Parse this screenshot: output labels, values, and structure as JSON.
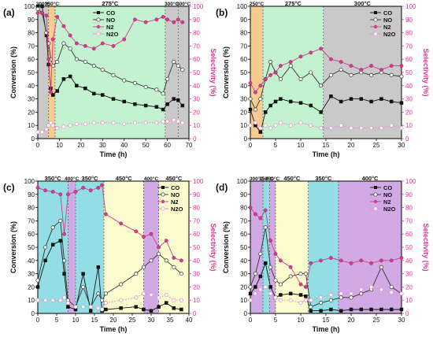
{
  "colors": {
    "co": "#111111",
    "no": "#333333",
    "n2": "#d63c8e",
    "n2o": "#e58cc2",
    "band_300": "#bfbfbf",
    "band_275": "#b8f0c8",
    "band_250": "#f7c27a",
    "band_350": "#7fd8df",
    "band_400": "#c99be0",
    "band_450": "#fafbc5",
    "right_axis": "#d63c8e"
  },
  "chart_data": [
    {
      "type": "line",
      "panel_label": "(a)",
      "xlabel": "Time (h)",
      "ylabel": "Conversion (%)",
      "y2label": "Selectivity (%)",
      "xlim": [
        0,
        70
      ],
      "xticks": [
        0,
        10,
        20,
        30,
        40,
        50,
        60,
        70
      ],
      "ylim": [
        0,
        100
      ],
      "yticks": [
        0,
        10,
        20,
        30,
        40,
        50,
        60,
        70,
        80,
        90,
        100
      ],
      "y2ticks": [
        0,
        10,
        20,
        30,
        40,
        50,
        60,
        70,
        80,
        90,
        100
      ],
      "legend": {
        "position": "top-left-inner",
        "entries": [
          "CO",
          "NO",
          "N2",
          "N2O"
        ]
      },
      "bands": [
        {
          "x0": 0,
          "x1": 5,
          "temp": "300°C",
          "color": "band_300"
        },
        {
          "x0": 5,
          "x1": 8,
          "temp": "250°C",
          "color": "band_250"
        },
        {
          "x0": 8,
          "x1": 59,
          "temp": "275°C",
          "color": "band_275"
        },
        {
          "x0": 59,
          "x1": 65,
          "temp": "300°C",
          "color": "band_300"
        },
        {
          "x0": 65,
          "x1": 70,
          "temp": "300°C",
          "color": "band_300"
        }
      ],
      "series": [
        {
          "name": "CO",
          "axis": "left",
          "marker": "filled-square",
          "color": "co",
          "x": [
            0,
            2,
            4,
            5,
            6,
            7,
            9,
            12,
            15,
            18,
            22,
            26,
            30,
            35,
            40,
            45,
            50,
            55,
            58,
            60,
            63,
            65,
            67
          ],
          "values": [
            100,
            100,
            78,
            56,
            38,
            33,
            36,
            45,
            47,
            40,
            38,
            34,
            33,
            30,
            28,
            26,
            25,
            24,
            22,
            26,
            30,
            29,
            25
          ]
        },
        {
          "name": "NO",
          "axis": "left",
          "marker": "open-circle",
          "color": "no",
          "x": [
            0,
            2,
            4,
            5,
            6,
            7,
            9,
            12,
            15,
            18,
            22,
            26,
            30,
            35,
            40,
            45,
            50,
            55,
            58,
            60,
            63,
            65,
            67
          ],
          "values": [
            98,
            95,
            80,
            72,
            60,
            55,
            58,
            72,
            68,
            60,
            58,
            55,
            52,
            48,
            44,
            42,
            39,
            37,
            34,
            45,
            58,
            55,
            52
          ]
        },
        {
          "name": "N2",
          "axis": "right",
          "marker": "filled-circle",
          "color": "n2",
          "x": [
            0,
            2,
            4,
            5,
            6,
            7,
            9,
            12,
            15,
            18,
            22,
            26,
            30,
            35,
            40,
            45,
            50,
            55,
            58,
            60,
            63,
            65,
            67
          ],
          "values": [
            95,
            95,
            93,
            60,
            35,
            75,
            92,
            85,
            78,
            72,
            70,
            68,
            72,
            70,
            75,
            90,
            88,
            90,
            92,
            90,
            88,
            90,
            88
          ]
        },
        {
          "name": "N2O",
          "axis": "right",
          "marker": "open-circle",
          "color": "n2o",
          "x": [
            0,
            2,
            4,
            5,
            6,
            7,
            9,
            12,
            15,
            18,
            22,
            26,
            30,
            35,
            40,
            45,
            50,
            55,
            58,
            60,
            63,
            65,
            67
          ],
          "values": [
            5,
            5,
            7,
            10,
            12,
            10,
            8,
            9,
            10,
            11,
            11,
            12,
            12,
            12,
            11,
            12,
            12,
            12,
            13,
            13,
            14,
            13,
            12
          ]
        }
      ]
    },
    {
      "type": "line",
      "panel_label": "(b)",
      "xlabel": "Time (h)",
      "ylabel": "Conversion (%)",
      "y2label": "Selectivity (%)",
      "xlim": [
        0,
        30
      ],
      "xticks": [
        0,
        5,
        10,
        15,
        20,
        25,
        30
      ],
      "ylim": [
        0,
        100
      ],
      "yticks": [
        0,
        10,
        20,
        30,
        40,
        50,
        60,
        70,
        80,
        90,
        100
      ],
      "y2ticks": [
        0,
        10,
        20,
        30,
        40,
        50,
        60,
        70,
        80,
        90,
        100
      ],
      "legend": {
        "position": "top-right",
        "entries": [
          "CO",
          "NO",
          "N2",
          "N2O"
        ]
      },
      "bands": [
        {
          "x0": 0,
          "x1": 2.5,
          "temp": "250°C",
          "color": "band_250"
        },
        {
          "x0": 2.5,
          "x1": 14.5,
          "temp": "275°C",
          "color": "band_275"
        },
        {
          "x0": 14.5,
          "x1": 30,
          "temp": "300°C",
          "color": "band_300"
        }
      ],
      "series": [
        {
          "name": "CO",
          "axis": "left",
          "marker": "filled-square",
          "color": "co",
          "x": [
            0,
            1,
            2,
            3,
            4,
            5,
            6,
            8,
            10,
            12,
            14,
            16,
            18,
            20,
            22,
            24,
            26,
            28,
            30
          ],
          "values": [
            22,
            10,
            5,
            20,
            25,
            28,
            30,
            28,
            27,
            25,
            20,
            32,
            28,
            30,
            30,
            28,
            30,
            28,
            27
          ]
        },
        {
          "name": "NO",
          "axis": "left",
          "marker": "open-circle",
          "color": "no",
          "x": [
            0,
            1,
            2,
            3,
            4,
            5,
            6,
            8,
            10,
            12,
            14,
            16,
            18,
            20,
            22,
            24,
            26,
            28,
            30
          ],
          "values": [
            30,
            22,
            30,
            45,
            58,
            50,
            45,
            55,
            45,
            50,
            40,
            48,
            52,
            48,
            50,
            48,
            50,
            48,
            47
          ]
        },
        {
          "name": "N2",
          "axis": "right",
          "marker": "filled-circle",
          "color": "n2",
          "x": [
            0,
            1,
            2,
            3,
            4,
            5,
            6,
            8,
            10,
            12,
            14,
            16,
            18,
            20,
            22,
            24,
            26,
            28,
            30
          ],
          "values": [
            42,
            35,
            40,
            45,
            48,
            50,
            55,
            58,
            62,
            65,
            68,
            60,
            58,
            55,
            52,
            55,
            52,
            55,
            55
          ]
        },
        {
          "name": "N2O",
          "axis": "right",
          "marker": "open-circle",
          "color": "n2o",
          "x": [
            0,
            1,
            2,
            3,
            4,
            5,
            6,
            8,
            10,
            12,
            14,
            16,
            18,
            20,
            22,
            24,
            26,
            28,
            30
          ],
          "values": [
            10,
            12,
            8,
            10,
            8,
            10,
            12,
            10,
            12,
            10,
            8,
            8,
            10,
            8,
            8,
            8,
            8,
            10,
            8
          ]
        }
      ]
    },
    {
      "type": "line",
      "panel_label": "(c)",
      "xlabel": "Time (h)",
      "ylabel": "Conversion (%)",
      "y2label": "Selectivity (%)",
      "xlim": [
        0,
        40
      ],
      "xticks": [
        0,
        5,
        10,
        15,
        20,
        25,
        30,
        35,
        40
      ],
      "ylim": [
        0,
        100
      ],
      "yticks": [
        0,
        10,
        20,
        30,
        40,
        50,
        60,
        70,
        80,
        90,
        100
      ],
      "y2ticks": [
        0,
        10,
        20,
        30,
        40,
        50,
        60,
        70,
        80,
        90,
        100
      ],
      "legend": {
        "position": "top-right",
        "entries": [
          "CO",
          "NO",
          "N2",
          "N2O"
        ]
      },
      "bands": [
        {
          "x0": 0,
          "x1": 8,
          "temp": "350°C",
          "color": "band_350"
        },
        {
          "x0": 8,
          "x1": 10,
          "temp": "400°C",
          "color": "band_400"
        },
        {
          "x0": 10,
          "x1": 17.5,
          "temp": "350°C",
          "color": "band_350"
        },
        {
          "x0": 17.5,
          "x1": 28,
          "temp": "450°C",
          "color": "band_450"
        },
        {
          "x0": 28,
          "x1": 32,
          "temp": "400°C",
          "color": "band_400"
        },
        {
          "x0": 32,
          "x1": 40,
          "temp": "450°C",
          "color": "band_450"
        }
      ],
      "series": [
        {
          "name": "CO",
          "axis": "left",
          "marker": "filled-square",
          "color": "co",
          "x": [
            0,
            2,
            4,
            6,
            7,
            8,
            10,
            12,
            14,
            16,
            17,
            18,
            22,
            26,
            28,
            30,
            32,
            34,
            36,
            38
          ],
          "values": [
            20,
            40,
            52,
            55,
            30,
            5,
            3,
            30,
            2,
            35,
            2,
            3,
            4,
            5,
            3,
            2,
            5,
            8,
            4,
            3
          ]
        },
        {
          "name": "NO",
          "axis": "left",
          "marker": "open-circle",
          "color": "no",
          "x": [
            0,
            2,
            4,
            6,
            7,
            8,
            10,
            12,
            14,
            16,
            17,
            18,
            22,
            26,
            28,
            30,
            32,
            34,
            36,
            38
          ],
          "values": [
            25,
            50,
            65,
            70,
            40,
            10,
            5,
            20,
            5,
            15,
            10,
            15,
            22,
            30,
            35,
            40,
            45,
            40,
            35,
            30
          ]
        },
        {
          "name": "N2",
          "axis": "right",
          "marker": "filled-circle",
          "color": "n2",
          "x": [
            0,
            2,
            4,
            6,
            7,
            8,
            10,
            12,
            14,
            16,
            17,
            18,
            22,
            26,
            28,
            30,
            32,
            34,
            36,
            38
          ],
          "values": [
            95,
            93,
            92,
            90,
            60,
            90,
            92,
            95,
            93,
            95,
            97,
            75,
            68,
            62,
            58,
            60,
            50,
            55,
            42,
            40
          ]
        },
        {
          "name": "N2O",
          "axis": "right",
          "marker": "open-circle",
          "color": "n2o",
          "x": [
            0,
            2,
            4,
            6,
            7,
            8,
            10,
            12,
            14,
            16,
            17,
            18,
            22,
            26,
            28,
            30,
            32,
            34,
            36,
            38
          ],
          "values": [
            10,
            10,
            10,
            10,
            12,
            8,
            5,
            5,
            5,
            4,
            3,
            8,
            10,
            12,
            15,
            14,
            12,
            14,
            10,
            10
          ]
        }
      ]
    },
    {
      "type": "line",
      "panel_label": "(d)",
      "xlabel": "Time (h)",
      "ylabel": "Conversion (%)",
      "y2label": "Selectivity (%)",
      "xlim": [
        0,
        30
      ],
      "xticks": [
        0,
        5,
        10,
        15,
        20,
        25,
        30
      ],
      "ylim": [
        0,
        100
      ],
      "yticks": [
        0,
        10,
        20,
        30,
        40,
        50,
        60,
        70,
        80,
        90,
        100
      ],
      "y2ticks": [
        0,
        10,
        20,
        30,
        40,
        50,
        60,
        70,
        80,
        90,
        100
      ],
      "legend": {
        "position": "top-right",
        "entries": [
          "CO",
          "NO",
          "N2",
          "N2O"
        ]
      },
      "bands": [
        {
          "x0": 0,
          "x1": 2.5,
          "temp": "300°C",
          "color": "band_400"
        },
        {
          "x0": 2.5,
          "x1": 3.8,
          "temp": "350°C",
          "color": "band_350"
        },
        {
          "x0": 3.8,
          "x1": 5,
          "temp": "400°C",
          "color": "band_400"
        },
        {
          "x0": 5,
          "x1": 11.5,
          "temp": "450°C",
          "color": "band_450"
        },
        {
          "x0": 11.5,
          "x1": 17.5,
          "temp": "350°C",
          "color": "band_350"
        },
        {
          "x0": 17.5,
          "x1": 30,
          "temp": "400°C",
          "color": "band_400"
        }
      ],
      "series": [
        {
          "name": "CO",
          "axis": "left",
          "marker": "filled-square",
          "color": "co",
          "x": [
            0,
            1,
            2,
            3,
            4,
            5,
            6,
            8,
            10,
            11,
            12,
            14,
            16,
            18,
            20,
            22,
            24,
            26,
            28,
            30
          ],
          "values": [
            15,
            20,
            28,
            38,
            20,
            12,
            14,
            15,
            14,
            13,
            2,
            2,
            3,
            2,
            3,
            3,
            3,
            3,
            3,
            3
          ]
        },
        {
          "name": "NO",
          "axis": "left",
          "marker": "open-circle",
          "color": "no",
          "x": [
            0,
            1,
            2,
            3,
            4,
            5,
            6,
            8,
            10,
            11,
            12,
            14,
            16,
            18,
            20,
            22,
            24,
            26,
            28,
            30
          ],
          "values": [
            20,
            30,
            45,
            65,
            35,
            25,
            22,
            28,
            30,
            30,
            5,
            8,
            10,
            12,
            12,
            15,
            18,
            35,
            20,
            15
          ]
        },
        {
          "name": "N2",
          "axis": "right",
          "marker": "filled-circle",
          "color": "n2",
          "x": [
            0,
            1,
            2,
            3,
            4,
            5,
            6,
            8,
            10,
            11,
            12,
            14,
            16,
            18,
            20,
            22,
            24,
            26,
            28,
            30
          ],
          "values": [
            80,
            75,
            72,
            78,
            55,
            45,
            40,
            35,
            22,
            20,
            38,
            40,
            42,
            40,
            38,
            40,
            38,
            40,
            40,
            42
          ]
        },
        {
          "name": "N2O",
          "axis": "right",
          "marker": "open-circle",
          "color": "n2o",
          "x": [
            0,
            1,
            2,
            3,
            4,
            5,
            6,
            8,
            10,
            11,
            12,
            14,
            16,
            18,
            20,
            22,
            24,
            26,
            28,
            30
          ],
          "values": [
            10,
            15,
            18,
            20,
            15,
            12,
            10,
            10,
            8,
            10,
            10,
            12,
            14,
            15,
            15,
            18,
            20,
            18,
            16,
            15
          ]
        }
      ]
    }
  ]
}
